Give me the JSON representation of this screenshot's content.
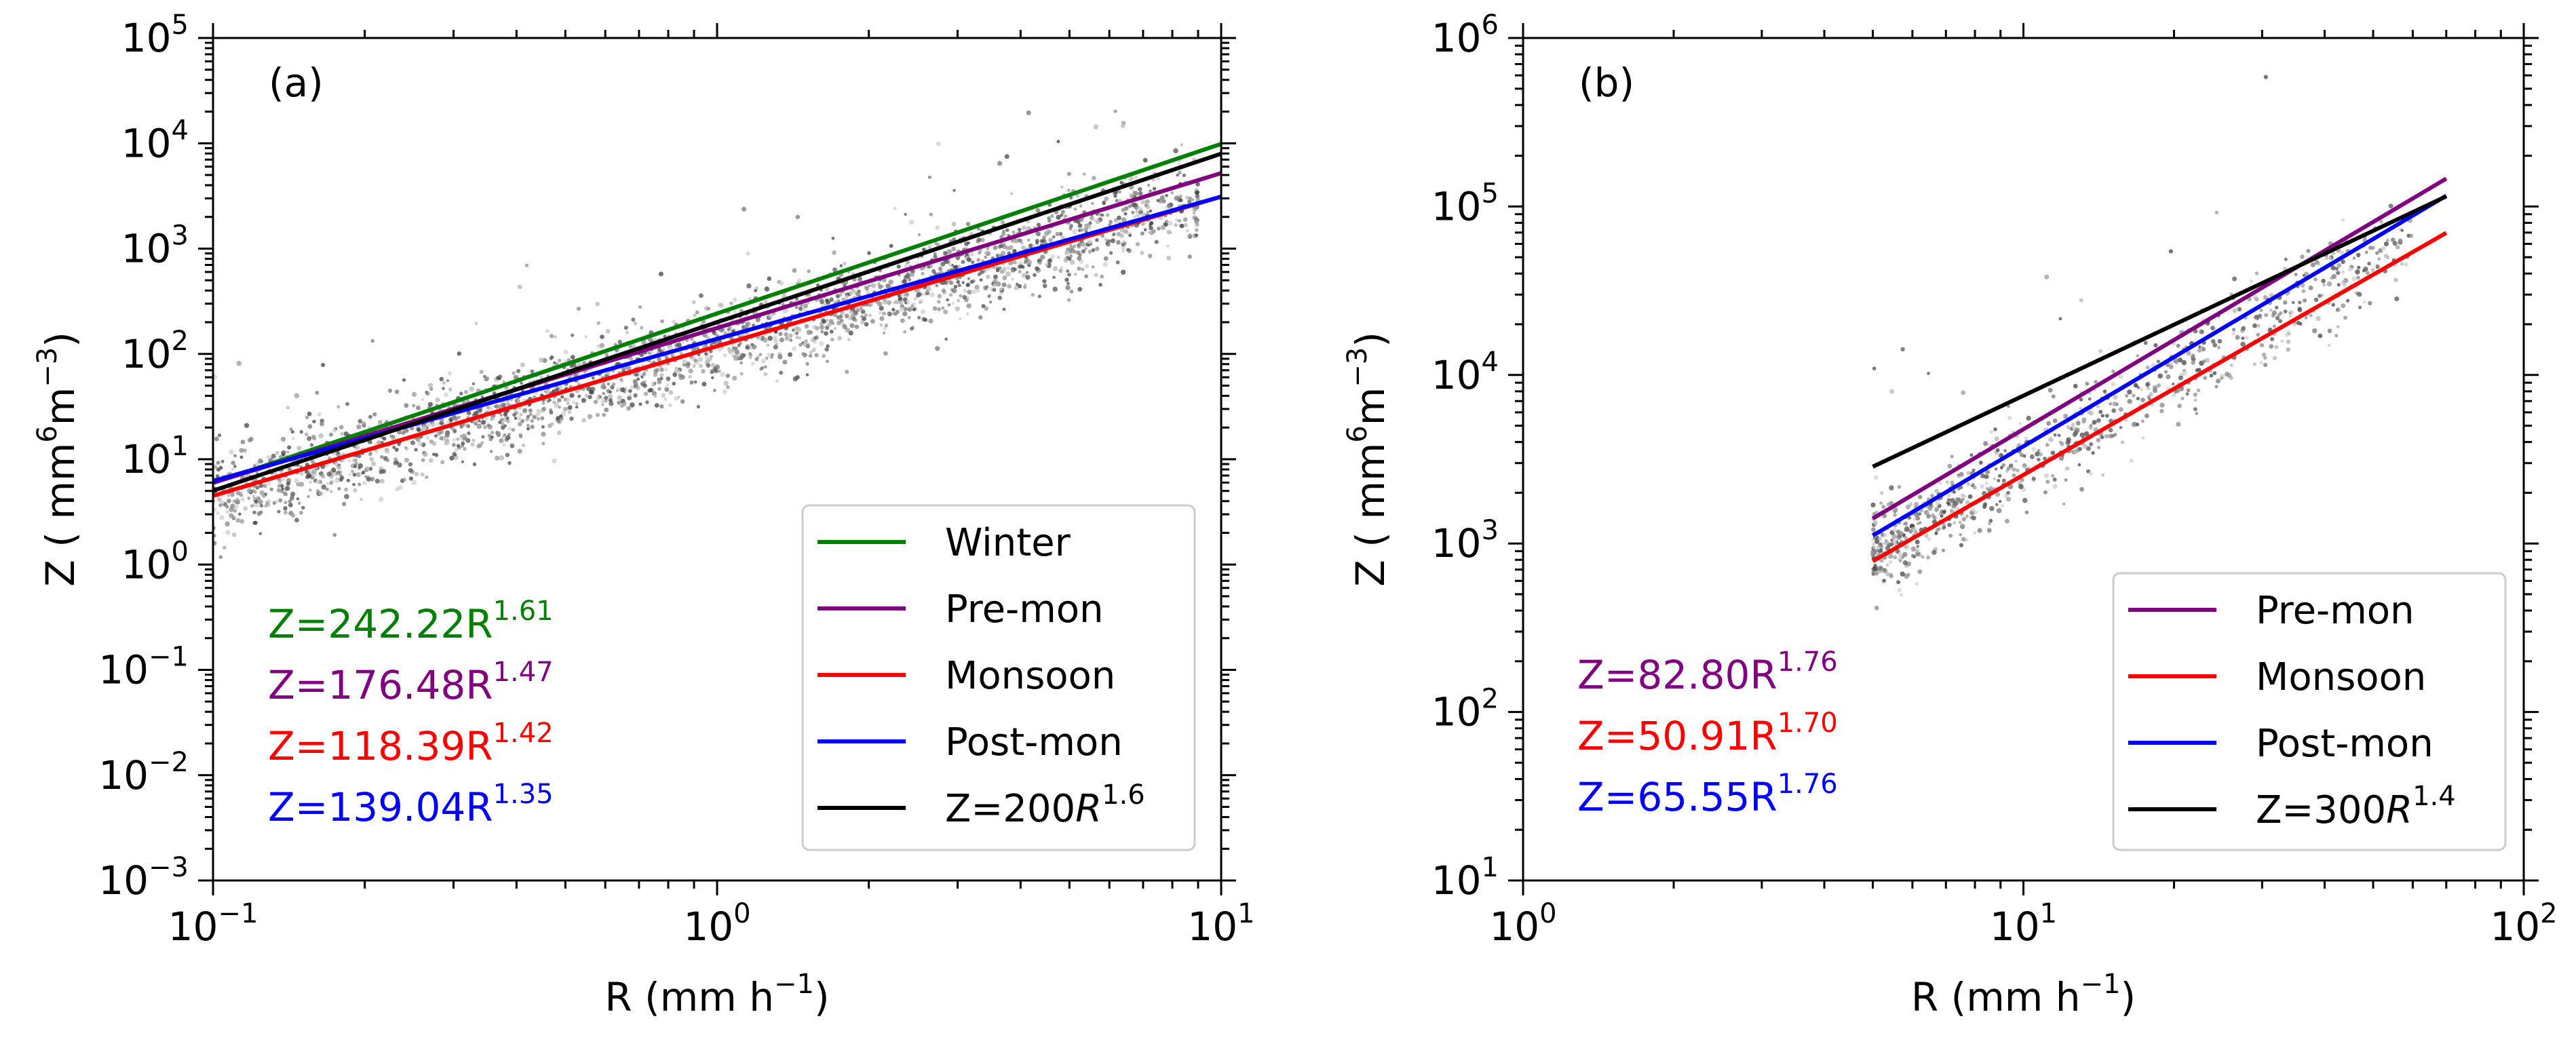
{
  "chart_data": [
    {
      "type": "scatter",
      "panel_label": "(a)",
      "scale": "log-log",
      "xlabel": {
        "base": "R (mm h",
        "sup": "−1",
        "tail": ")"
      },
      "ylabel": {
        "base": "Z ( mm",
        "sup1": "6",
        "mid": "m",
        "sup2": "−3",
        "tail": ")"
      },
      "xlim": [
        0.1,
        10
      ],
      "ylim": [
        0.001,
        100000
      ],
      "x_ticks": [
        {
          "value": 0.1,
          "base": "10",
          "exp": "−1"
        },
        {
          "value": 1,
          "base": "10",
          "exp": "0"
        },
        {
          "value": 10,
          "base": "10",
          "exp": "1"
        }
      ],
      "y_ticks": [
        {
          "value": 0.001,
          "base": "10",
          "exp": "−3"
        },
        {
          "value": 0.01,
          "base": "10",
          "exp": "−2"
        },
        {
          "value": 0.1,
          "base": "10",
          "exp": "−1"
        },
        {
          "value": 1,
          "base": "10",
          "exp": "0"
        },
        {
          "value": 10,
          "base": "10",
          "exp": "1"
        },
        {
          "value": 100,
          "base": "10",
          "exp": "2"
        },
        {
          "value": 1000,
          "base": "10",
          "exp": "3"
        },
        {
          "value": 10000,
          "base": "10",
          "exp": "4"
        },
        {
          "value": 100000,
          "base": "10",
          "exp": "5"
        }
      ],
      "scatter": {
        "color": "#6e6e6e",
        "x_range": [
          0.1,
          9
        ],
        "description_values": {
          "center_a": 120,
          "center_b": 1.45,
          "spread_log10": 0.28
        }
      },
      "series": [
        {
          "name": "Winter",
          "color": "#008000",
          "a": 242.22,
          "b": 1.61,
          "x_range": [
            0.1,
            10
          ]
        },
        {
          "name": "Pre-mon",
          "color": "#800080",
          "a": 176.48,
          "b": 1.47,
          "x_range": [
            0.1,
            10
          ]
        },
        {
          "name": "Monsoon",
          "color": "#ff0000",
          "a": 118.39,
          "b": 1.42,
          "x_range": [
            0.1,
            10
          ]
        },
        {
          "name": "Post-mon",
          "color": "#0000ff",
          "a": 139.04,
          "b": 1.35,
          "x_range": [
            0.1,
            10
          ]
        },
        {
          "name": "Z=200R1.6",
          "color": "#000000",
          "a": 200,
          "b": 1.6,
          "x_range": [
            0.1,
            10
          ]
        }
      ],
      "legend": {
        "position": "lower-right",
        "entries": [
          {
            "color": "#008000",
            "label": "Winter"
          },
          {
            "color": "#800080",
            "label": "Pre-mon"
          },
          {
            "color": "#ff0000",
            "label": "Monsoon"
          },
          {
            "color": "#0000ff",
            "label": "Post-mon"
          },
          {
            "color": "#000000",
            "label": "Z=200",
            "italic": "R",
            "sup": "1.6"
          }
        ]
      },
      "equations": [
        {
          "color": "#008000",
          "text": "Z=242.22R",
          "sup": "1.61"
        },
        {
          "color": "#800080",
          "text": "Z=176.48R",
          "sup": "1.47"
        },
        {
          "color": "#ff0000",
          "text": "Z=118.39R",
          "sup": "1.42"
        },
        {
          "color": "#0000ff",
          "text": "Z=139.04R",
          "sup": "1.35"
        }
      ]
    },
    {
      "type": "scatter",
      "panel_label": "(b)",
      "scale": "log-log",
      "xlabel": {
        "base": "R (mm h",
        "sup": "−1",
        "tail": ")"
      },
      "ylabel": {
        "base": "Z ( mm",
        "sup1": "6",
        "mid": "m",
        "sup2": "−3",
        "tail": ")"
      },
      "xlim": [
        1,
        100
      ],
      "ylim": [
        10,
        1000000
      ],
      "x_ticks": [
        {
          "value": 1,
          "base": "10",
          "exp": "0"
        },
        {
          "value": 10,
          "base": "10",
          "exp": "1"
        },
        {
          "value": 100,
          "base": "10",
          "exp": "2"
        }
      ],
      "y_ticks": [
        {
          "value": 10,
          "base": "10",
          "exp": "1"
        },
        {
          "value": 100,
          "base": "10",
          "exp": "2"
        },
        {
          "value": 1000,
          "base": "10",
          "exp": "3"
        },
        {
          "value": 10000,
          "base": "10",
          "exp": "4"
        },
        {
          "value": 100000,
          "base": "10",
          "exp": "5"
        },
        {
          "value": 1000000,
          "base": "10",
          "exp": "6"
        }
      ],
      "scatter": {
        "color": "#6e6e6e",
        "x_range": [
          5,
          60
        ],
        "description_values": {
          "center_a": 55,
          "center_b": 1.74,
          "spread_log10": 0.18
        }
      },
      "series": [
        {
          "name": "Pre-mon",
          "color": "#800080",
          "a": 82.8,
          "b": 1.76,
          "x_range": [
            5,
            70
          ]
        },
        {
          "name": "Monsoon",
          "color": "#ff0000",
          "a": 50.91,
          "b": 1.7,
          "x_range": [
            5,
            70
          ]
        },
        {
          "name": "Post-mon",
          "color": "#0000ff",
          "a": 65.55,
          "b": 1.76,
          "x_range": [
            5,
            70
          ]
        },
        {
          "name": "Z=300R1.4",
          "color": "#000000",
          "a": 300,
          "b": 1.4,
          "x_range": [
            5,
            70
          ]
        }
      ],
      "legend": {
        "position": "lower-right",
        "entries": [
          {
            "color": "#800080",
            "label": "Pre-mon"
          },
          {
            "color": "#ff0000",
            "label": "Monsoon"
          },
          {
            "color": "#0000ff",
            "label": "Post-mon"
          },
          {
            "color": "#000000",
            "label": "Z=300",
            "italic": "R",
            "sup": "1.4"
          }
        ]
      },
      "equations": [
        {
          "color": "#800080",
          "text": "Z=82.80R",
          "sup": "1.76"
        },
        {
          "color": "#ff0000",
          "text": "Z=50.91R",
          "sup": "1.70"
        },
        {
          "color": "#0000ff",
          "text": "Z=65.55R",
          "sup": "1.76"
        }
      ]
    }
  ]
}
